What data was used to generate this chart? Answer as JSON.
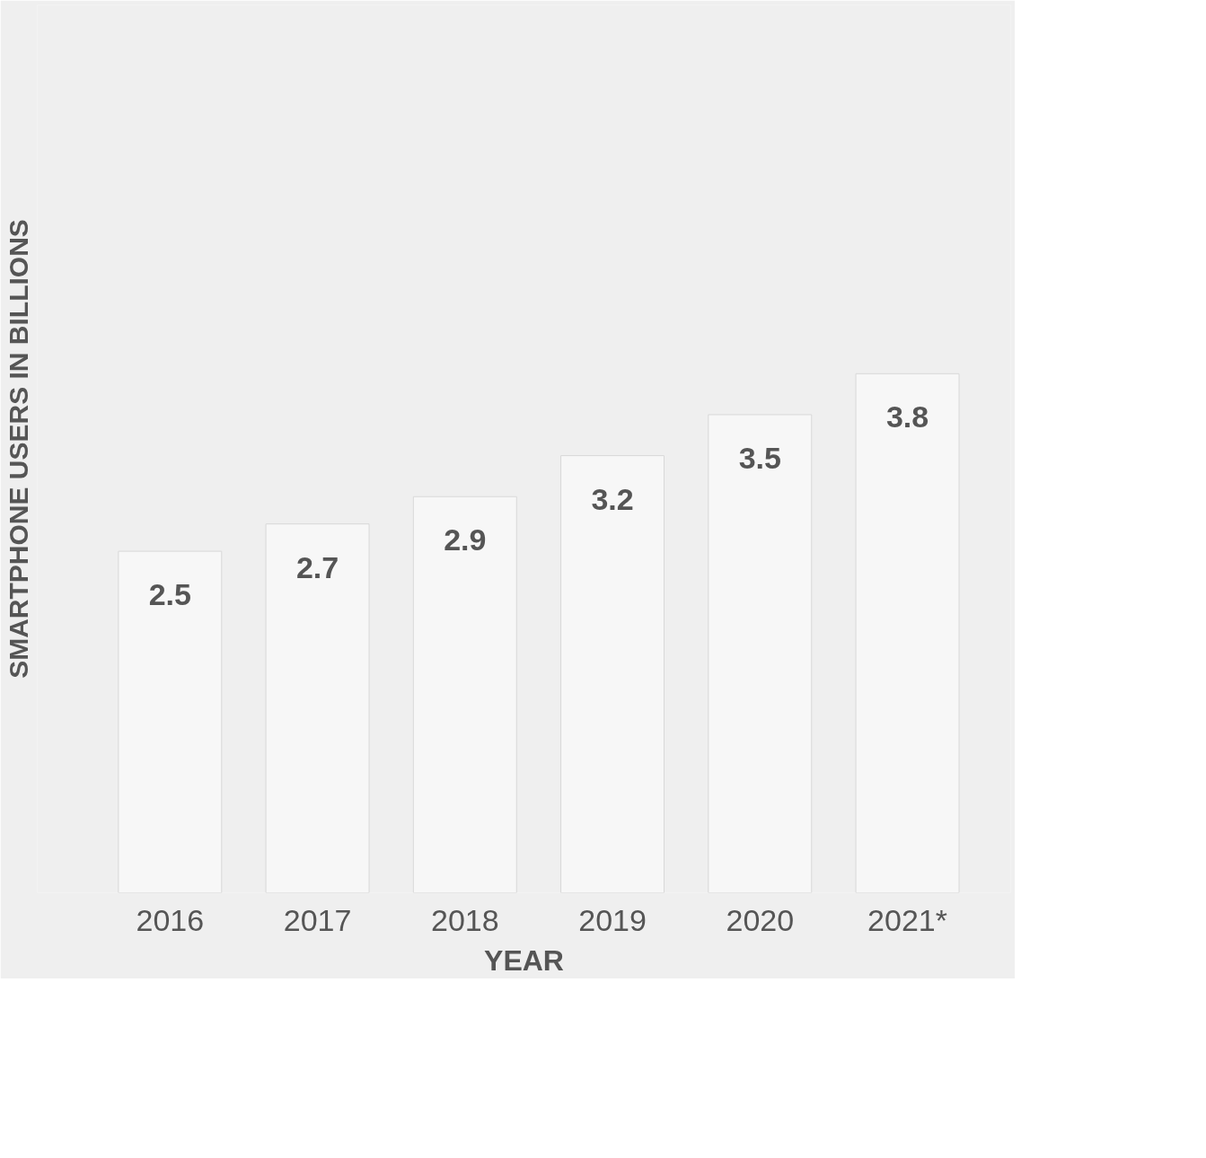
{
  "chart_data": {
    "type": "bar",
    "xlabel": "YEAR",
    "ylabel": "SMARTPHONE USERS IN BILLIONS",
    "categories": [
      "2016",
      "2017",
      "2018",
      "2019",
      "2020",
      "2021*"
    ],
    "values": [
      2.5,
      2.7,
      2.9,
      3.2,
      3.5,
      3.8
    ],
    "color": "#f7f7f7",
    "ylim": [
      0,
      6.5
    ],
    "data_labels": true,
    "tick_labels": "x",
    "grid": false
  }
}
